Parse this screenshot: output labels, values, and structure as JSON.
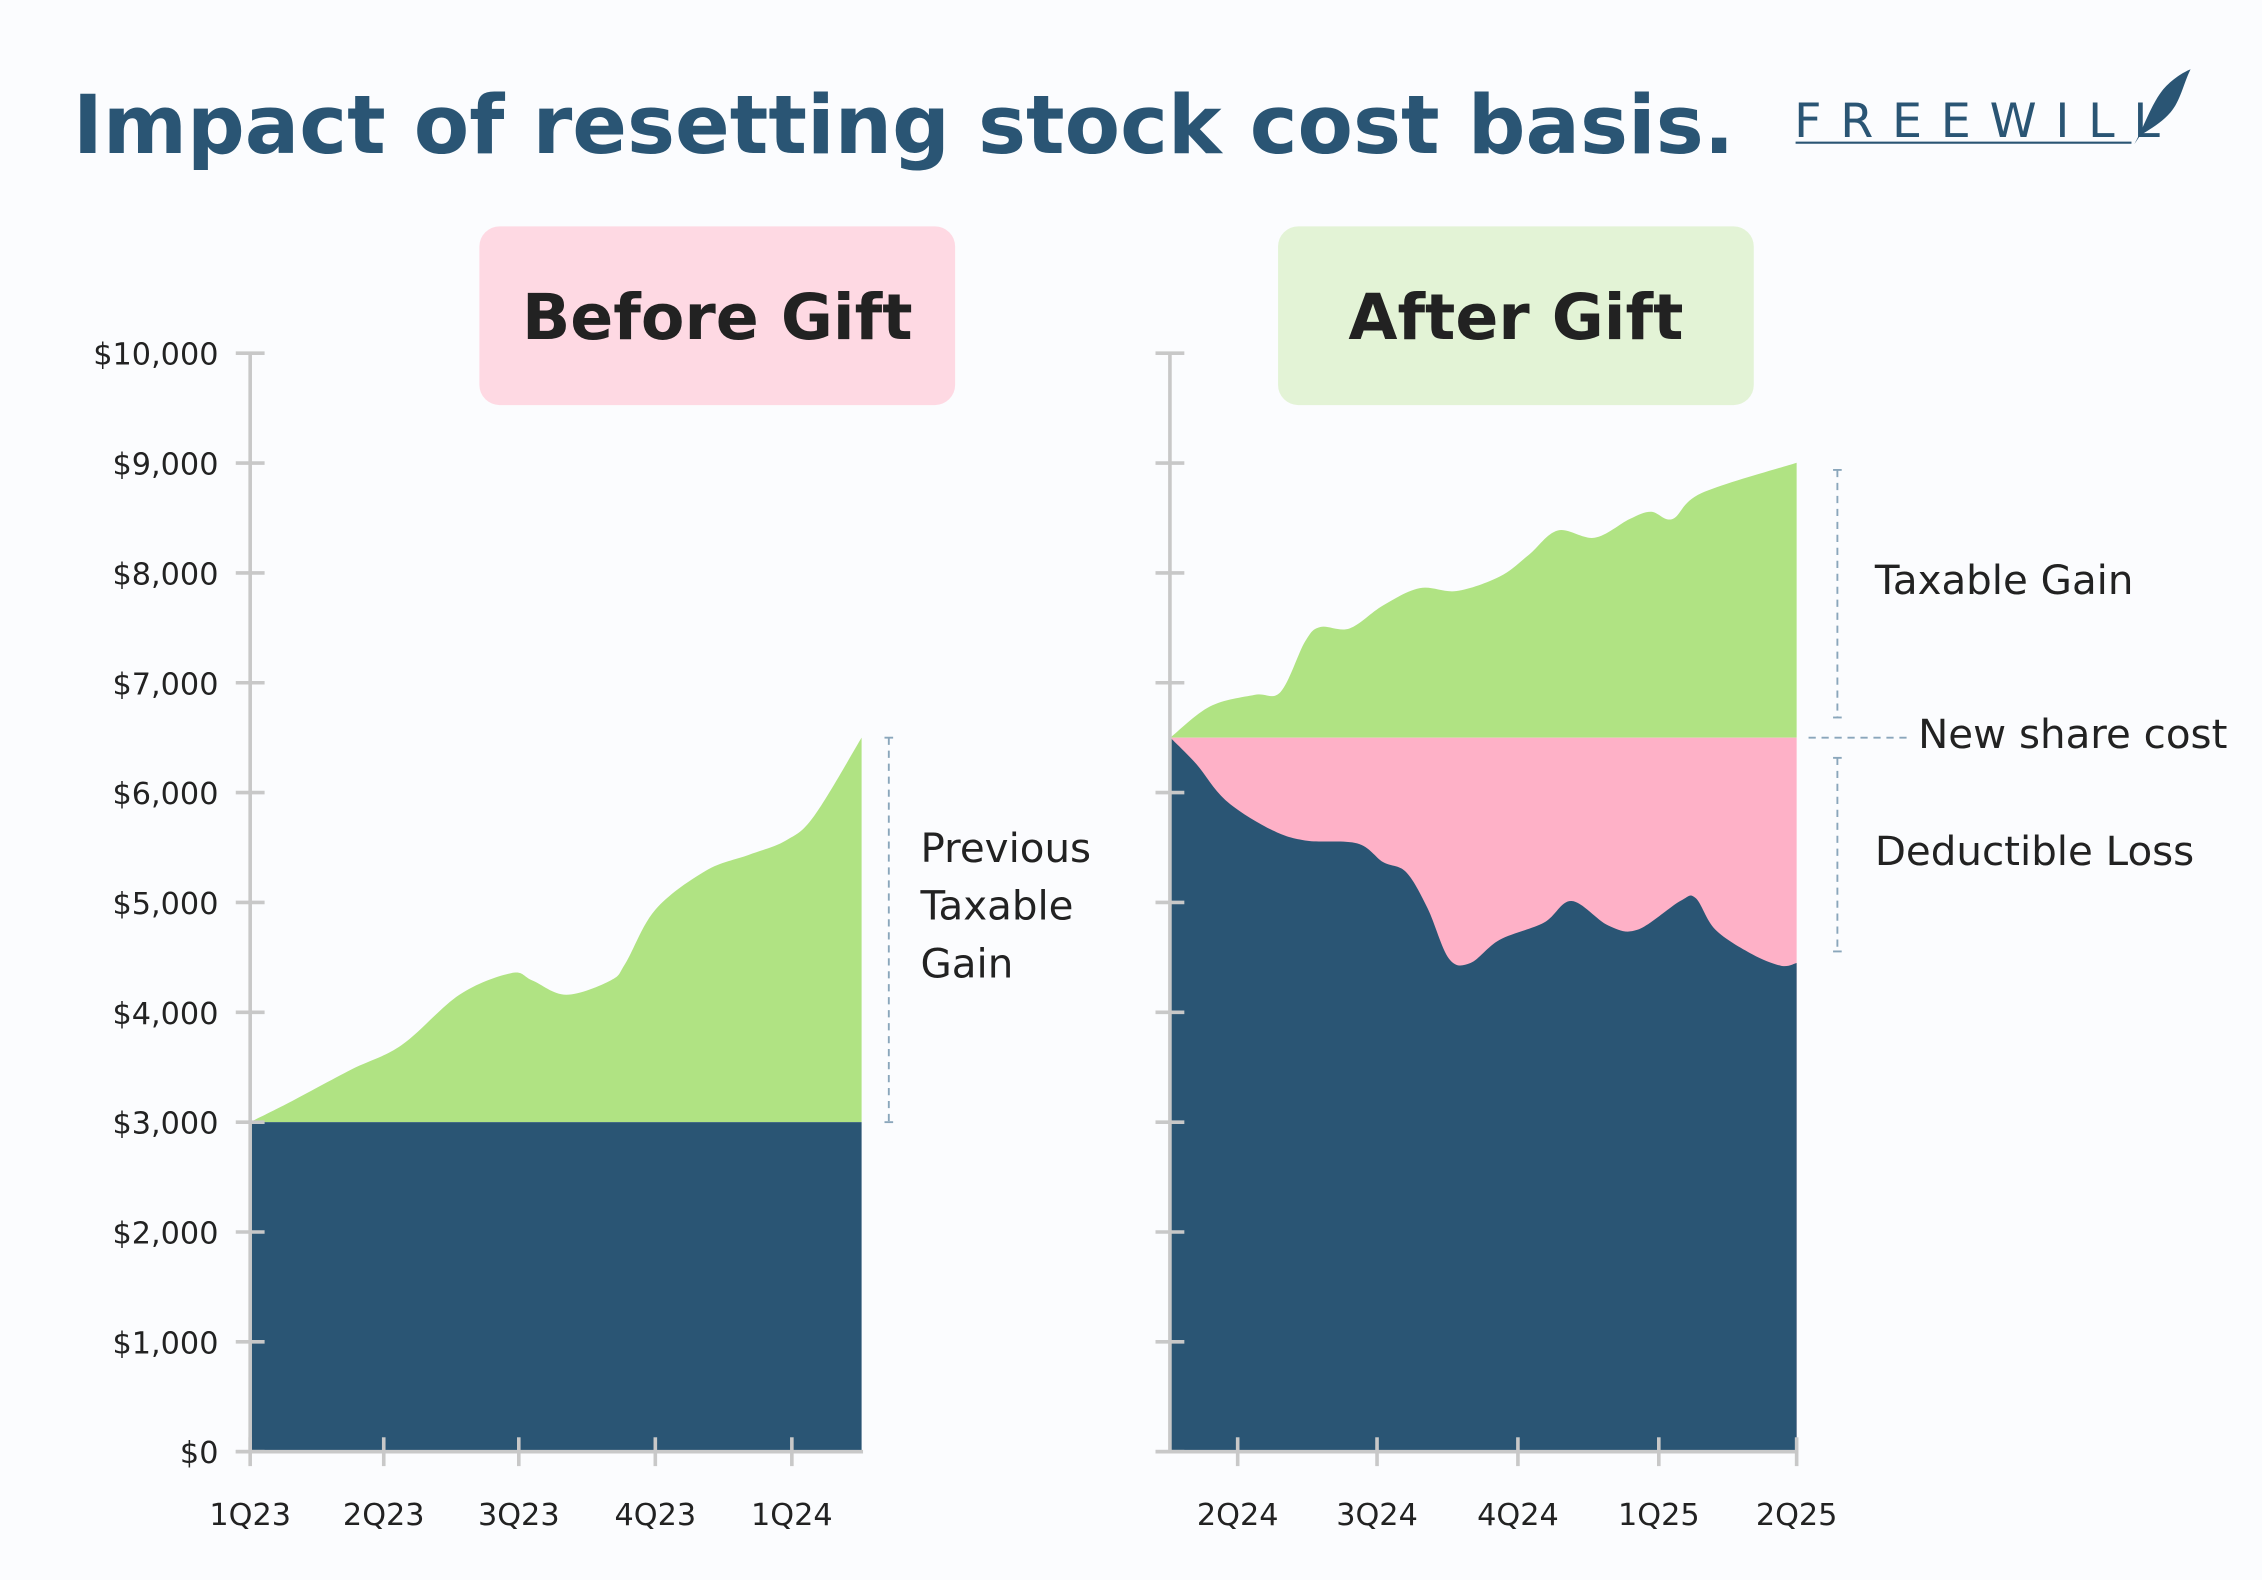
{
  "title": "Impact of resetting stock cost basis.",
  "logo": "FREEWILL",
  "colors": {
    "cost_basis": "#2a5574",
    "gain": "#b0e383",
    "loss": "#feb1c7",
    "before_header": "#fed9e3",
    "after_header": "#e3f3d6",
    "axis": "#c8c8c8",
    "bracket": "#8aa6bb"
  },
  "chart_data": [
    {
      "type": "area",
      "title": "Before Gift",
      "y_ticks": [
        "$0",
        "$1,000",
        "$2,000",
        "$3,000",
        "$4,000",
        "$5,000",
        "$6,000",
        "$7,000",
        "$8,000",
        "$9,000",
        "$10,000"
      ],
      "ylim": [
        0,
        10000
      ],
      "x_ticks": [
        {
          "label": "1Q23",
          "date": "2023-01-01"
        },
        {
          "label": "2Q23",
          "date": "2023-04-01"
        },
        {
          "label": "3Q23",
          "date": "2023-07-01"
        },
        {
          "label": "4Q23",
          "date": "2023-10-01"
        },
        {
          "label": "1Q24",
          "date": "2024-01-01"
        }
      ],
      "cost_basis": 3000,
      "annotations": {
        "gain_label": [
          "Previous",
          "Taxable",
          "Gain"
        ]
      },
      "value_series": [
        [
          "2023-01-01",
          3000
        ],
        [
          "2023-01-27",
          3176
        ],
        [
          "2023-03-10",
          3478
        ],
        [
          "2023-04-13",
          3701
        ],
        [
          "2023-05-22",
          4160
        ],
        [
          "2023-06-26",
          4357
        ],
        [
          "2023-07-10",
          4291
        ],
        [
          "2023-08-02",
          4160
        ],
        [
          "2023-09-01",
          4291
        ],
        [
          "2023-09-11",
          4449
        ],
        [
          "2023-10-01",
          4934
        ],
        [
          "2023-11-04",
          5289
        ],
        [
          "2023-12-03",
          5433
        ],
        [
          "2023-12-28",
          5564
        ],
        [
          "2024-01-16",
          5787
        ],
        [
          "2024-02-17",
          6500
        ]
      ]
    },
    {
      "type": "area",
      "title": "After Gift",
      "ylim": [
        0,
        10000
      ],
      "x_ticks": [
        {
          "label": "2Q24",
          "date": "2024-04-01"
        },
        {
          "label": "3Q24",
          "date": "2024-07-01"
        },
        {
          "label": "4Q24",
          "date": "2024-10-01"
        },
        {
          "label": "1Q25",
          "date": "2025-01-01"
        },
        {
          "label": "2Q25",
          "date": "2025-04-01"
        }
      ],
      "cost_basis": 6500,
      "annotations": {
        "gain_label": "Taxable Gain",
        "basis_label": "New share cost",
        "loss_label": "Deductible Loss"
      },
      "gain_series": [
        [
          "2024-02-17",
          6500
        ],
        [
          "2024-03-14",
          6785
        ],
        [
          "2024-04-12",
          6890
        ],
        [
          "2024-04-29",
          6916
        ],
        [
          "2024-05-15",
          7375
        ],
        [
          "2024-05-25",
          7507
        ],
        [
          "2024-06-13",
          7494
        ],
        [
          "2024-07-05",
          7704
        ],
        [
          "2024-07-29",
          7861
        ],
        [
          "2024-08-22",
          7835
        ],
        [
          "2024-09-19",
          7966
        ],
        [
          "2024-10-08",
          8163
        ],
        [
          "2024-10-27",
          8386
        ],
        [
          "2024-11-20",
          8320
        ],
        [
          "2024-12-13",
          8491
        ],
        [
          "2024-12-27",
          8557
        ],
        [
          "2025-01-10",
          8491
        ],
        [
          "2025-01-29",
          8727
        ],
        [
          "2025-04-01",
          9003
        ]
      ],
      "loss_series": [
        [
          "2024-02-17",
          6500
        ],
        [
          "2024-03-05",
          6260
        ],
        [
          "2024-03-24",
          5932
        ],
        [
          "2024-04-22",
          5669
        ],
        [
          "2024-05-15",
          5564
        ],
        [
          "2024-06-18",
          5538
        ],
        [
          "2024-07-05",
          5367
        ],
        [
          "2024-07-20",
          5276
        ],
        [
          "2024-08-03",
          4947
        ],
        [
          "2024-08-17",
          4488
        ],
        [
          "2024-08-31",
          4449
        ],
        [
          "2024-09-19",
          4659
        ],
        [
          "2024-10-18",
          4816
        ],
        [
          "2024-11-05",
          5013
        ],
        [
          "2024-11-29",
          4790
        ],
        [
          "2024-12-18",
          4751
        ],
        [
          "2025-01-15",
          5013
        ],
        [
          "2025-01-25",
          5040
        ],
        [
          "2025-02-07",
          4751
        ],
        [
          "2025-03-03",
          4528
        ],
        [
          "2025-03-22",
          4423
        ],
        [
          "2025-04-01",
          4449
        ]
      ]
    }
  ]
}
